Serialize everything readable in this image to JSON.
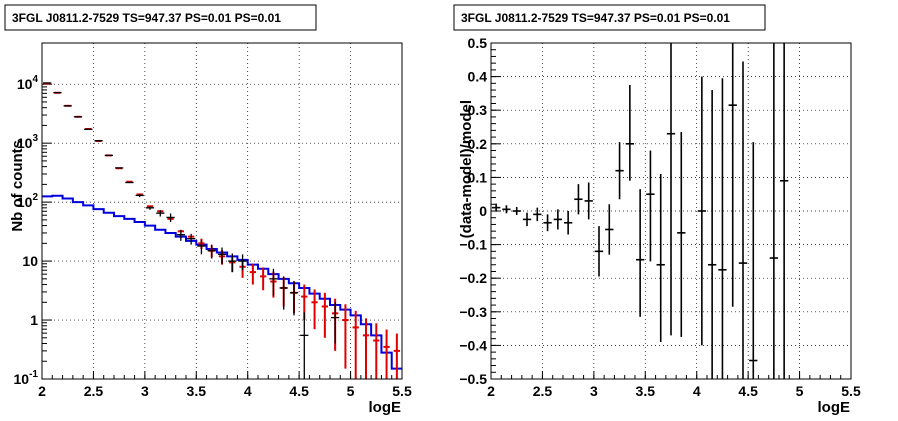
{
  "colors": {
    "data": "#000000",
    "model": "#e00000",
    "background": "#0000dd"
  },
  "chart_data": [
    {
      "type": "line",
      "title": "3FGL J0811.2-7529 TS=947.37 PS=0.01 PS=0.01",
      "xlabel": "logE",
      "ylabel": "Nb of counts",
      "y_scale": "log",
      "xlim": [
        2,
        5.5
      ],
      "ylim": [
        0.1,
        50000
      ],
      "grid": true,
      "x_ticks": [
        "2",
        "2.5",
        "3",
        "3.5",
        "4",
        "4.5",
        "5",
        "5.5"
      ],
      "y_ticks": [
        "10^{-1}",
        "1",
        "10",
        "10^{2}",
        "10^{3}",
        "10^{4}"
      ],
      "bin_edges": [
        2.0,
        2.1,
        2.2,
        2.3,
        2.4,
        2.5,
        2.6,
        2.7,
        2.8,
        2.9,
        3.0,
        3.1,
        3.2,
        3.3,
        3.4,
        3.5,
        3.6,
        3.7,
        3.8,
        3.9,
        4.0,
        4.1,
        4.2,
        4.3,
        4.4,
        4.5,
        4.6,
        4.7,
        4.8,
        4.9,
        5.0,
        5.1,
        5.2,
        5.3,
        5.4,
        5.5
      ],
      "series": [
        {
          "name": "",
          "role": "data",
          "color": "#000000",
          "x": [
            2.05,
            2.15,
            2.25,
            2.35,
            2.45,
            2.55,
            2.65,
            2.75,
            2.85,
            2.95,
            3.05,
            3.15,
            3.25,
            3.35,
            3.45,
            3.55,
            3.65,
            3.75,
            3.85,
            3.95,
            4.05,
            4.15,
            4.25,
            4.35,
            4.45,
            4.55,
            4.65,
            4.75,
            4.85,
            4.95,
            5.05,
            5.15,
            5.25,
            5.35,
            5.45
          ],
          "values": [
            10500,
            7200,
            4300,
            2800,
            1720,
            1100,
            620,
            380,
            215,
            130,
            80,
            65,
            55,
            28,
            24,
            18,
            15,
            13,
            10,
            10,
            null,
            null,
            5,
            3.5,
            2.9,
            0.55,
            null,
            null,
            1.1,
            null,
            null,
            null,
            null,
            null,
            null
          ],
          "err_low": [
            0,
            0,
            0,
            0,
            0,
            0,
            0,
            0,
            0,
            8,
            6,
            8,
            9,
            6,
            5,
            5,
            4,
            4,
            3.5,
            3,
            null,
            null,
            2.4,
            2,
            1.7,
            0.45,
            null,
            null,
            0.7,
            null,
            null,
            null,
            null,
            null,
            null
          ],
          "err_high": [
            0,
            0,
            0,
            0,
            0,
            0,
            0,
            0,
            0,
            8,
            6,
            8,
            9,
            6,
            5,
            5,
            4,
            4,
            3.5,
            3,
            null,
            null,
            2.4,
            2,
            1.7,
            0.8,
            null,
            null,
            0.9,
            null,
            null,
            null,
            null,
            null,
            null
          ]
        },
        {
          "name": "",
          "role": "model",
          "color": "#e00000",
          "x": [
            2.05,
            2.15,
            2.25,
            2.35,
            2.45,
            2.55,
            2.65,
            2.75,
            2.85,
            2.95,
            3.05,
            3.15,
            3.25,
            3.35,
            3.45,
            3.55,
            3.65,
            3.75,
            3.85,
            3.95,
            4.05,
            4.15,
            4.25,
            4.35,
            4.45,
            4.55,
            4.65,
            4.75,
            4.85,
            4.95,
            5.05,
            5.15,
            5.25,
            5.35,
            5.45
          ],
          "values": [
            10300,
            7150,
            4300,
            2800,
            1740,
            1090,
            620,
            375,
            222,
            135,
            85,
            70,
            52,
            32,
            26,
            20,
            15,
            12,
            9.5,
            8,
            6.5,
            5.5,
            4.5,
            3.5,
            2.9,
            2.5,
            2.0,
            1.7,
            1.3,
            1.0,
            0.75,
            0.55,
            0.45,
            0.35,
            0.3
          ],
          "err_low": [
            0,
            0,
            0,
            0,
            0,
            0,
            0,
            0,
            0,
            0,
            0,
            0,
            0,
            0,
            0,
            4,
            3.5,
            3.3,
            3,
            2.8,
            2.5,
            2.3,
            2.1,
            1.8,
            1.6,
            1.5,
            1.3,
            1.2,
            1.0,
            0.85,
            0.68,
            0.52,
            0.43,
            0.34,
            0.29
          ],
          "err_high": [
            0,
            0,
            0,
            0,
            0,
            0,
            0,
            0,
            0,
            0,
            0,
            0,
            0,
            0,
            0,
            4,
            3.5,
            3.3,
            3,
            2.8,
            2.5,
            2.3,
            2.1,
            1.8,
            1.6,
            1.5,
            1.3,
            1.2,
            1.0,
            0.85,
            0.68,
            0.52,
            0.43,
            0.34,
            0.29
          ]
        },
        {
          "name": "",
          "role": "background",
          "color": "#0000dd",
          "values": [
            125,
            128,
            115,
            100,
            88,
            76,
            66,
            58,
            52,
            46,
            40,
            34,
            30,
            26,
            22,
            19,
            16,
            14,
            12,
            10.5,
            8.7,
            7.4,
            6.0,
            5.0,
            4.2,
            3.5,
            2.8,
            2.3,
            1.8,
            1.5,
            1.2,
            0.85,
            0.55,
            0.28,
            0.15
          ]
        }
      ]
    },
    {
      "type": "scatter",
      "title": "3FGL J0811.2-7529 TS=947.37 PS=0.01 PS=0.01",
      "xlabel": "logE",
      "ylabel": "(data-model)/model",
      "xlim": [
        2,
        5.5
      ],
      "ylim": [
        -0.5,
        0.5
      ],
      "grid": true,
      "x_ticks": [
        "2",
        "2.5",
        "3",
        "3.5",
        "4",
        "4.5",
        "5",
        "5.5"
      ],
      "y_ticks": [
        "−0.5",
        "−0.4",
        "−0.3",
        "−0.2",
        "−0.1",
        "0",
        "0.1",
        "0.2",
        "0.3",
        "0.4",
        "0.5"
      ],
      "series": [
        {
          "name": "",
          "color": "#000000",
          "x": [
            2.05,
            2.15,
            2.25,
            2.35,
            2.45,
            2.55,
            2.65,
            2.75,
            2.85,
            2.95,
            3.05,
            3.15,
            3.25,
            3.35,
            3.45,
            3.55,
            3.65,
            3.75,
            3.85,
            4.05,
            4.15,
            4.25,
            4.35,
            4.45,
            4.55,
            4.75,
            4.85
          ],
          "values": [
            0.01,
            0.005,
            0.0,
            -0.025,
            -0.01,
            -0.035,
            -0.025,
            -0.035,
            0.035,
            0.03,
            -0.12,
            -0.055,
            0.12,
            0.2,
            -0.145,
            0.05,
            -0.16,
            0.23,
            -0.065,
            0.0,
            -0.16,
            -0.175,
            0.315,
            -0.155,
            -0.445,
            -0.14,
            0.09
          ],
          "err_low": [
            0.012,
            0.012,
            0.012,
            0.02,
            0.02,
            0.025,
            0.03,
            0.035,
            0.045,
            0.055,
            0.075,
            0.075,
            0.085,
            0.11,
            0.17,
            0.2,
            0.23,
            0.6,
            0.31,
            0.4,
            0.5,
            0.55,
            0.6,
            0.55,
            0.2,
            0.6,
            0.7
          ],
          "err_high": [
            0.012,
            0.012,
            0.012,
            0.02,
            0.02,
            0.025,
            0.03,
            0.035,
            0.045,
            0.055,
            0.075,
            0.075,
            0.085,
            0.175,
            0.21,
            0.13,
            0.27,
            0.6,
            0.3,
            0.4,
            0.52,
            0.57,
            0.5,
            0.6,
            0.65,
            0.9,
            0.9
          ]
        }
      ]
    }
  ]
}
